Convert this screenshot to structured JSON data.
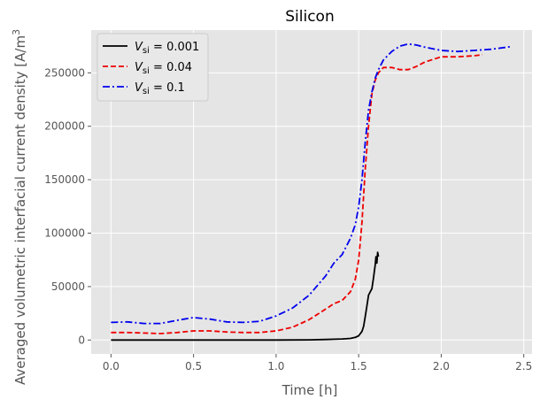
{
  "chart_data": {
    "type": "line",
    "title": "Silicon",
    "xlabel": "Time [h]",
    "ylabel": "Averaged volumetric interfacial current density [A/m",
    "ylabel_sup": "3",
    "xlim": [
      -0.12,
      2.55
    ],
    "ylim": [
      -13000,
      290000
    ],
    "xticks": [
      0.0,
      0.5,
      1.0,
      1.5,
      2.0,
      2.5
    ],
    "xtick_labels": [
      "0.0",
      "0.5",
      "1.0",
      "1.5",
      "2.0",
      "2.5"
    ],
    "yticks": [
      0,
      50000,
      100000,
      150000,
      200000,
      250000
    ],
    "ytick_labels": [
      "0",
      "50000",
      "100000",
      "150000",
      "200000",
      "250000"
    ],
    "grid": true,
    "legend_position": "top-left",
    "series": [
      {
        "name_prefix": "V",
        "name_sub": "si",
        "name_suffix": " = 0.001",
        "color": "#000000",
        "dash": "solid",
        "x": [
          0,
          0.2,
          0.5,
          0.8,
          1.0,
          1.2,
          1.3,
          1.4,
          1.45,
          1.48,
          1.5,
          1.52,
          1.53,
          1.54,
          1.55,
          1.56,
          1.57,
          1.58,
          1.59,
          1.6,
          1.605,
          1.61,
          1.615,
          1.62
        ],
        "y": [
          0,
          0,
          0,
          0,
          0,
          200,
          500,
          1000,
          1500,
          2500,
          4000,
          8000,
          13000,
          22000,
          32000,
          42000,
          45000,
          48000,
          58000,
          70000,
          78000,
          72000,
          82000,
          78000
        ]
      },
      {
        "name_prefix": "V",
        "name_sub": "si",
        "name_suffix": " = 0.04",
        "color": "#ee0000",
        "dash": "dashed",
        "x": [
          0,
          0.1,
          0.2,
          0.3,
          0.4,
          0.5,
          0.6,
          0.7,
          0.8,
          0.9,
          1.0,
          1.1,
          1.2,
          1.3,
          1.35,
          1.4,
          1.45,
          1.48,
          1.5,
          1.52,
          1.54,
          1.56,
          1.58,
          1.6,
          1.62,
          1.65,
          1.7,
          1.75,
          1.8,
          1.85,
          1.9,
          2.0,
          2.1,
          2.2,
          2.25
        ],
        "y": [
          7000,
          7000,
          6500,
          6000,
          7000,
          8500,
          8500,
          7500,
          7000,
          7000,
          8500,
          12000,
          19000,
          29000,
          34000,
          37000,
          45000,
          57000,
          75000,
          110000,
          160000,
          200000,
          230000,
          243000,
          250000,
          255000,
          255000,
          253000,
          253000,
          256000,
          260000,
          265000,
          265000,
          266000,
          267000
        ]
      },
      {
        "name_prefix": "V",
        "name_sub": "si",
        "name_suffix": " = 0.1",
        "color": "#0000ee",
        "dash": "dashdot",
        "x": [
          0,
          0.1,
          0.2,
          0.3,
          0.4,
          0.5,
          0.6,
          0.7,
          0.8,
          0.9,
          1.0,
          1.1,
          1.2,
          1.3,
          1.35,
          1.4,
          1.45,
          1.48,
          1.5,
          1.52,
          1.54,
          1.56,
          1.58,
          1.6,
          1.62,
          1.65,
          1.7,
          1.75,
          1.8,
          1.85,
          1.9,
          2.0,
          2.1,
          2.2,
          2.3,
          2.4,
          2.42
        ],
        "y": [
          16500,
          17000,
          15500,
          15500,
          18500,
          21000,
          19500,
          17000,
          16500,
          17500,
          22500,
          30000,
          42000,
          60000,
          72000,
          80000,
          95000,
          108000,
          125000,
          150000,
          185000,
          215000,
          232000,
          245000,
          253000,
          262000,
          270000,
          275000,
          277000,
          276000,
          274000,
          271000,
          270000,
          271000,
          272000,
          274000,
          274500
        ]
      }
    ]
  },
  "colors": {
    "plot_background": "#e5e5e5",
    "grid": "#ffffff"
  }
}
